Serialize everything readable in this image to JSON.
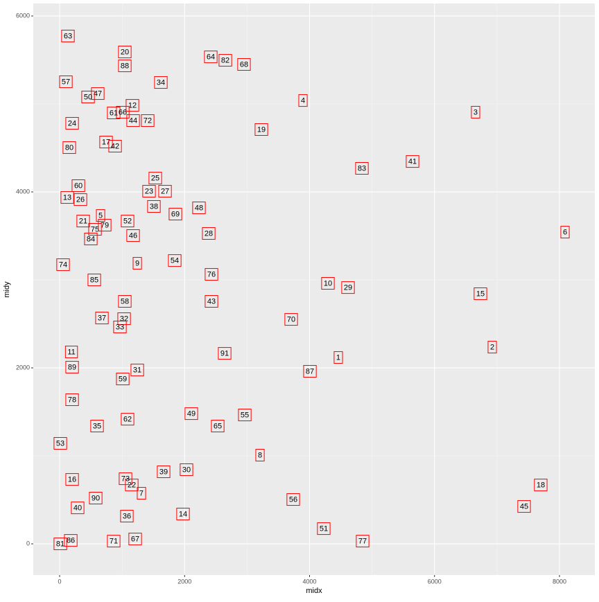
{
  "chart_data": {
    "type": "label-scatter",
    "x_label": "midx",
    "y_label": "midy",
    "labels": [
      "1",
      "2",
      "3",
      "4",
      "5",
      "6",
      "7",
      "8",
      "9",
      "10",
      "11",
      "12",
      "13",
      "14",
      "15",
      "16",
      "17",
      "18",
      "19",
      "20",
      "21",
      "22",
      "23",
      "24",
      "25",
      "26",
      "27",
      "28",
      "29",
      "30",
      "31",
      "32",
      "33",
      "34",
      "35",
      "36",
      "37",
      "38",
      "39",
      "40",
      "41",
      "42",
      "43",
      "44",
      "45",
      "46",
      "47",
      "48",
      "49",
      "50",
      "51",
      "52",
      "53",
      "54",
      "55",
      "56",
      "57",
      "58",
      "59",
      "60",
      "61",
      "62",
      "63",
      "64",
      "65",
      "66",
      "67",
      "68",
      "69",
      "70",
      "71",
      "72",
      "73",
      "74",
      "75",
      "76",
      "77",
      "78",
      "79",
      "80",
      "81",
      "82",
      "83",
      "84",
      "85",
      "86",
      "87",
      "88",
      "89",
      "90",
      "91"
    ],
    "x": [
      4460,
      6924,
      6657,
      3895,
      655,
      8089,
      1309,
      3207,
      1243,
      4294,
      189,
      1165,
      122,
      1975,
      6735,
      200,
      743,
      7700,
      3229,
      1043,
      377,
      1154,
      1431,
      200,
      1531,
      333,
      1687,
      2386,
      4616,
      2030,
      1243,
      1032,
      965,
      1620,
      599,
      1076,
      677,
      1509,
      1664,
      288,
      5648,
      888,
      2430,
      1176,
      7434,
      1176,
      610,
      2230,
      2108,
      455,
      4227,
      1087,
      11,
      1842,
      2963,
      3739,
      100,
      1043,
      1010,
      300,
      865,
      1087,
      133,
      2419,
      2530,
      1010,
      1209,
      2951,
      1853,
      3706,
      865,
      1409,
      1054,
      55,
      566,
      2430,
      4849,
      200,
      721,
      155,
      11,
      2652,
      4838,
      499,
      555,
      178,
      4006,
      1043,
      200,
      577,
      2641
    ],
    "y": [
      2118,
      2236,
      4906,
      5039,
      3732,
      3543,
      575,
      1008,
      3189,
      2961,
      2181,
      4984,
      3937,
      339,
      2843,
      732,
      4567,
      669,
      4709,
      5591,
      3669,
      669,
      4008,
      4780,
      4157,
      3913,
      4008,
      3528,
      2913,
      843,
      1976,
      2559,
      2465,
      5244,
      1339,
      315,
      2567,
      3835,
      819,
      409,
      4346,
      4520,
      2756,
      4811,
      425,
      3504,
      5118,
      3819,
      1480,
      5079,
      173,
      3669,
      1142,
      3220,
      1465,
      504,
      5252,
      2756,
      1874,
      4071,
      4898,
      1417,
      5772,
      5535,
      1339,
      4906,
      55,
      5449,
      3748,
      2551,
      31,
      4811,
      740,
      3173,
      3575,
      3063,
      31,
      1638,
      3622,
      4504,
      0,
      5496,
      4268,
      3465,
      3000,
      39,
      1961,
      5433,
      2008,
      520,
      2165
    ],
    "xlim": [
      -422,
      8566
    ],
    "ylim": [
      -354,
      6142
    ],
    "xticks": [
      0,
      2000,
      4000,
      6000,
      8000
    ],
    "yticks": [
      0,
      2000,
      4000,
      6000
    ],
    "grid": true,
    "box_color": "#ff0000"
  }
}
